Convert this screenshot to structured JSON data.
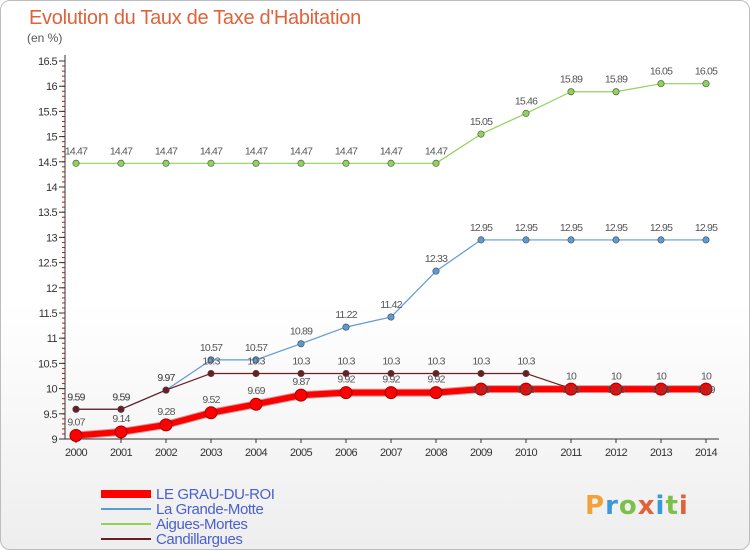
{
  "header": {
    "title": "Evolution du Taux de Taxe d'Habitation",
    "unit": "(en %)"
  },
  "logo": {
    "text": "Proxiti",
    "colors": [
      "#f2a23a",
      "#3a9ad9",
      "#7cc04b",
      "#e0623a",
      "#3a9ad9",
      "#7cc04b",
      "#e0623a"
    ]
  },
  "chart_data": {
    "type": "line",
    "title": "Evolution du Taux de Taxe d'Habitation",
    "xlabel": "",
    "ylabel": "(en %)",
    "ylim": [
      9,
      16.5
    ],
    "yticks": [
      "9",
      "9.5",
      "10",
      "10.5",
      "11",
      "11.5",
      "12",
      "12.5",
      "13",
      "13.5",
      "14",
      "14.5",
      "15",
      "15.5",
      "16",
      "16.5"
    ],
    "x": [
      "2000",
      "2001",
      "2002",
      "2003",
      "2004",
      "2005",
      "2006",
      "2007",
      "2008",
      "2009",
      "2010",
      "2011",
      "2012",
      "2013",
      "2014"
    ],
    "grid": false,
    "legend_position": "bottom-left",
    "series": [
      {
        "name": "LE GRAU-DU-ROI",
        "color": "#ff0000",
        "width": 6,
        "values": [
          9.07,
          9.14,
          9.28,
          9.52,
          9.69,
          9.87,
          9.92,
          9.92,
          9.92,
          9.99,
          9.99,
          9.99,
          9.99,
          9.99,
          9.99
        ],
        "labels": [
          "9.07",
          "9.14",
          "9.28",
          "9.52",
          "9.69",
          "9.87",
          "9.92",
          "9.92",
          "9.92",
          "9.99",
          "9.99",
          "9.99",
          "9.99",
          "9.99",
          "9.99"
        ]
      },
      {
        "name": "La Grande-Motte",
        "color": "#5b9bd5",
        "width": 1.2,
        "values": [
          9.59,
          9.59,
          9.97,
          10.57,
          10.57,
          10.89,
          11.22,
          11.42,
          12.33,
          12.95,
          12.95,
          12.95,
          12.95,
          12.95,
          12.95
        ],
        "labels": [
          "9.59",
          "9.59",
          "9.97",
          "10.57",
          "10.57",
          "10.89",
          "11.22",
          "11.42",
          "12.33",
          "12.95",
          "12.95",
          "12.95",
          "12.95",
          "12.95",
          "12.95"
        ]
      },
      {
        "name": "Aigues-Mortes",
        "color": "#8fd45a",
        "width": 1.2,
        "values": [
          14.47,
          14.47,
          14.47,
          14.47,
          14.47,
          14.47,
          14.47,
          14.47,
          14.47,
          15.05,
          15.46,
          15.89,
          15.89,
          16.05,
          16.05
        ],
        "labels": [
          "14.47",
          "14.47",
          "14.47",
          "14.47",
          "14.47",
          "14.47",
          "14.47",
          "14.47",
          "14.47",
          "15.05",
          "15.46",
          "15.89",
          "15.89",
          "16.05",
          "16.05"
        ]
      },
      {
        "name": "Candillargues",
        "color": "#6b1f24",
        "width": 1.2,
        "values": [
          9.59,
          9.59,
          9.97,
          10.3,
          10.3,
          10.3,
          10.3,
          10.3,
          10.3,
          10.3,
          10.3,
          10.0,
          10.0,
          10.0,
          10.0
        ],
        "labels": [
          "9.59",
          "9.59",
          "9.97",
          "10.3",
          "10.3",
          "10.3",
          "10.3",
          "10.3",
          "10.3",
          "10.3",
          "10.3",
          "10",
          "10",
          "10",
          "10"
        ]
      }
    ]
  }
}
